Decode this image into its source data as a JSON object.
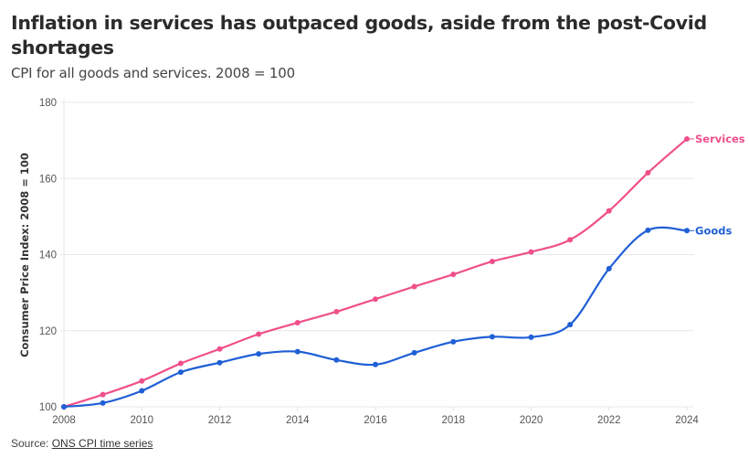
{
  "header": {
    "title": "Inflation in services has outpaced goods, aside from the post-Covid shortages",
    "subtitle": "CPI for all goods and services. 2008 = 100"
  },
  "footer": {
    "source_prefix": "Source: ",
    "source_link": "ONS CPI time series"
  },
  "chart_data": {
    "type": "line",
    "title": "Inflation in services has outpaced goods, aside from the post-Covid shortages",
    "subtitle": "CPI for all goods and services. 2008 = 100",
    "xlabel": "",
    "ylabel": "Consumer Price Index: 2008 = 100",
    "x": [
      2008,
      2009,
      2010,
      2011,
      2012,
      2013,
      2014,
      2015,
      2016,
      2017,
      2018,
      2019,
      2020,
      2021,
      2022,
      2023,
      2024
    ],
    "xlim": [
      2008,
      2024
    ],
    "ylim": [
      100,
      180
    ],
    "xticks": [
      2008,
      2010,
      2012,
      2014,
      2016,
      2018,
      2020,
      2022,
      2024
    ],
    "yticks": [
      100,
      120,
      140,
      160,
      180
    ],
    "grid": "horizontal",
    "legend": "direct labels at line ends (right)",
    "series": [
      {
        "name": "Services",
        "color": "#f0508a",
        "values": [
          100.0,
          103.2,
          106.8,
          111.4,
          115.2,
          119.1,
          122.1,
          125.0,
          128.3,
          131.6,
          134.8,
          138.2,
          140.7,
          143.9,
          151.5,
          161.5,
          170.4
        ]
      },
      {
        "name": "Goods",
        "color": "#1f5fd6",
        "values": [
          100.0,
          101.0,
          104.2,
          109.1,
          111.6,
          113.9,
          114.5,
          112.3,
          111.1,
          114.2,
          117.1,
          118.4,
          118.3,
          121.6,
          136.3,
          146.4,
          146.3
        ]
      }
    ]
  }
}
